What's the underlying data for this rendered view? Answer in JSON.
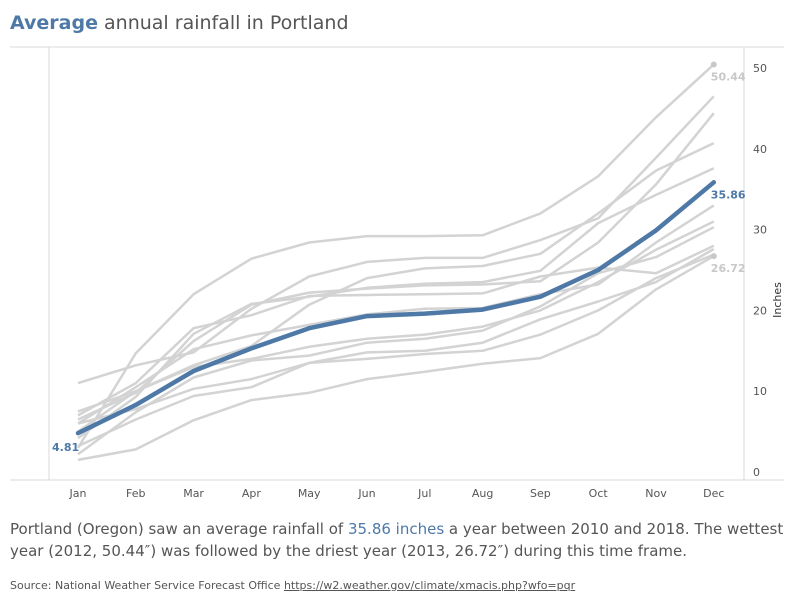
{
  "header": {
    "title_accent": "Average",
    "title_rest": " annual rainfall in Portland"
  },
  "description": {
    "part1": "Portland (Oregon) saw an average rainfall of ",
    "highlight": "35.86 inches",
    "part2": " a year between 2010 and 2018. The wettest year (2012, 50.44″) was followed by the driest year (2013, 26.72″) during this time frame."
  },
  "source": {
    "label": "Source: National Weather Service Forecast Office ",
    "link_text": "https://w2.weather.gov/climate/xmacis.php?wfo=pqr"
  },
  "colors": {
    "average": "#4e79a7",
    "years": "#d3d3d3",
    "label_gray": "#c8c8c8"
  },
  "chart_data": {
    "type": "line",
    "x": [
      "Jan",
      "Feb",
      "Mar",
      "Apr",
      "May",
      "Jun",
      "Jul",
      "Aug",
      "Sep",
      "Oct",
      "Nov",
      "Dec"
    ],
    "ylabel": "Inches",
    "ylim": [
      0,
      50
    ],
    "yticks": [
      0,
      10,
      20,
      30,
      40,
      50
    ],
    "y_axis_position": "right",
    "grid": false,
    "series": [
      {
        "role": "average",
        "values": [
          4.81,
          8.3,
          12.5,
          15.3,
          17.8,
          19.3,
          19.6,
          20.1,
          21.7,
          25.0,
          29.9,
          35.86
        ]
      },
      {
        "role": "year",
        "values": [
          3.0,
          14.7,
          22.0,
          26.4,
          28.4,
          29.2,
          29.2,
          29.3,
          32.0,
          36.6,
          43.9,
          50.44
        ]
      },
      {
        "role": "year",
        "values": [
          11.0,
          13.2,
          14.8,
          20.2,
          24.2,
          26.0,
          26.5,
          26.5,
          28.7,
          31.4,
          38.9,
          46.5
        ]
      },
      {
        "role": "year",
        "values": [
          6.5,
          9.8,
          16.2,
          20.7,
          22.2,
          22.7,
          23.1,
          23.2,
          23.6,
          28.4,
          35.6,
          44.4
        ]
      },
      {
        "role": "year",
        "values": [
          7.5,
          10.0,
          13.2,
          15.6,
          20.7,
          24.0,
          25.2,
          25.5,
          27.0,
          32.0,
          37.3,
          40.7
        ]
      },
      {
        "role": "year",
        "values": [
          4.2,
          9.3,
          17.1,
          20.8,
          21.7,
          22.8,
          23.3,
          23.5,
          24.9,
          30.8,
          34.3,
          37.6
        ]
      },
      {
        "role": "year",
        "values": [
          6.0,
          10.5,
          15.2,
          16.9,
          18.2,
          19.5,
          20.2,
          20.3,
          22.0,
          23.2,
          28.4,
          33.0
        ]
      },
      {
        "role": "year",
        "values": [
          2.2,
          7.4,
          11.7,
          13.8,
          14.4,
          16.0,
          16.5,
          17.5,
          20.5,
          24.6,
          26.6,
          30.3
        ]
      },
      {
        "role": "year",
        "values": [
          5.0,
          10.0,
          13.0,
          14.0,
          15.5,
          16.5,
          17.0,
          18.0,
          20.0,
          23.5,
          27.5,
          31.0
        ]
      },
      {
        "role": "year",
        "values": [
          7.0,
          11.0,
          17.8,
          19.4,
          21.8,
          21.9,
          22.0,
          22.1,
          24.2,
          25.3,
          24.6,
          28.0
        ]
      },
      {
        "role": "year",
        "values": [
          6.0,
          7.8,
          10.3,
          11.5,
          13.5,
          14.8,
          15.0,
          16.0,
          18.9,
          21.1,
          23.5,
          27.6
        ]
      },
      {
        "role": "year",
        "values": [
          3.2,
          6.5,
          9.4,
          10.5,
          13.5,
          14.0,
          14.6,
          15.0,
          17.0,
          20.0,
          24.0,
          26.9
        ]
      },
      {
        "role": "year",
        "values": [
          1.5,
          2.8,
          6.4,
          8.9,
          9.8,
          11.5,
          12.4,
          13.4,
          14.1,
          17.1,
          22.6,
          26.72
        ]
      }
    ],
    "labels": [
      {
        "text": "4.81",
        "month": "Jan",
        "value": 4.81,
        "style": "average"
      },
      {
        "text": "35.86",
        "month": "Dec",
        "value": 35.86,
        "style": "average"
      },
      {
        "text": "50.44",
        "month": "Dec",
        "value": 50.44,
        "style": "gray"
      },
      {
        "text": "26.72",
        "month": "Dec",
        "value": 26.72,
        "style": "gray"
      }
    ]
  }
}
